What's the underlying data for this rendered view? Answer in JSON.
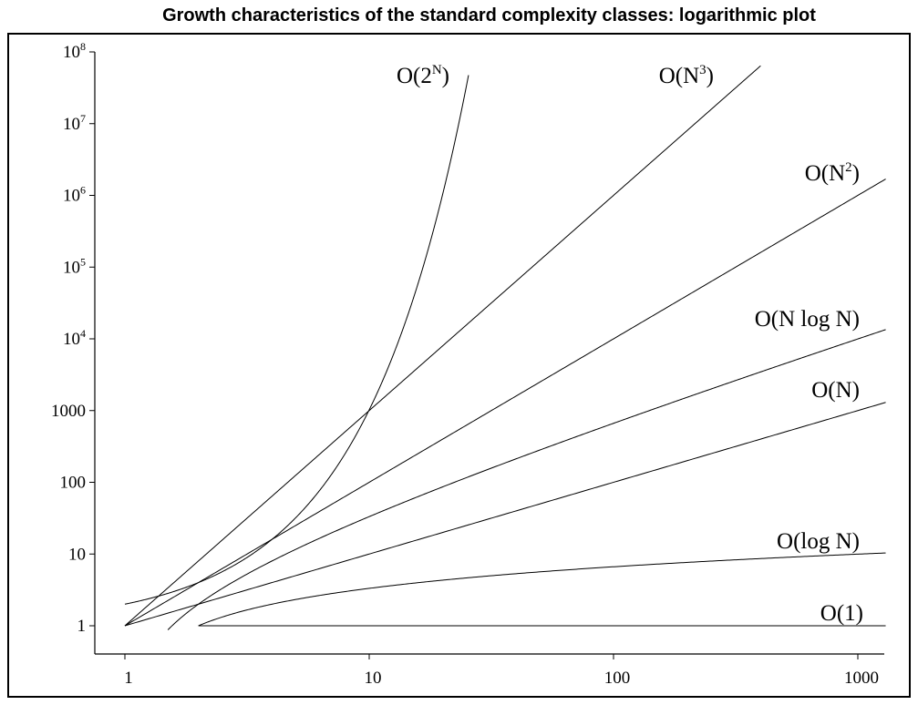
{
  "chart_data": {
    "type": "line",
    "title": "Growth characteristics of the standard complexity classes: logarithmic plot",
    "xscale": "log",
    "yscale": "log",
    "xlim": [
      1,
      1300
    ],
    "ylim": [
      1,
      100000000
    ],
    "x_ticks": [
      {
        "value": 1,
        "label": "1"
      },
      {
        "value": 10,
        "label": "10"
      },
      {
        "value": 100,
        "label": "100"
      },
      {
        "value": 1000,
        "label": "1000"
      }
    ],
    "y_ticks": [
      {
        "value": 1,
        "label": "1",
        "exp": ""
      },
      {
        "value": 10,
        "label": "10",
        "exp": ""
      },
      {
        "value": 100,
        "label": "100",
        "exp": ""
      },
      {
        "value": 1000,
        "label": "1000",
        "exp": ""
      },
      {
        "value": 10000,
        "label": "10",
        "exp": "4"
      },
      {
        "value": 100000,
        "label": "10",
        "exp": "5"
      },
      {
        "value": 1000000,
        "label": "10",
        "exp": "6"
      },
      {
        "value": 10000000,
        "label": "10",
        "exp": "7"
      },
      {
        "value": 100000000,
        "label": "10",
        "exp": "8"
      }
    ],
    "series": [
      {
        "id": "o1",
        "func": "one",
        "x_range": [
          2,
          1300
        ],
        "label": {
          "pre": "O(1)",
          "sup": "",
          "post": ""
        }
      },
      {
        "id": "ologn",
        "func": "log2",
        "x_range": [
          2,
          1300
        ],
        "label": {
          "pre": "O(log N)",
          "sup": "",
          "post": ""
        }
      },
      {
        "id": "on",
        "func": "n",
        "x_range": [
          1,
          1300
        ],
        "label": {
          "pre": "O(N)",
          "sup": "",
          "post": ""
        }
      },
      {
        "id": "onlogn",
        "func": "nlog2",
        "x_range": [
          1.5,
          1300
        ],
        "label": {
          "pre": "O(N log N)",
          "sup": "",
          "post": ""
        }
      },
      {
        "id": "on2",
        "func": "n2",
        "x_range": [
          1,
          1300
        ],
        "label": {
          "pre": "O(N",
          "sup": "2",
          "post": ")"
        }
      },
      {
        "id": "on3",
        "func": "n3",
        "x_range": [
          1,
          400
        ],
        "label": {
          "pre": "O(N",
          "sup": "3",
          "post": ")"
        }
      },
      {
        "id": "o2n",
        "func": "exp2",
        "x_range": [
          1,
          25.5
        ],
        "label": {
          "pre": "O(2",
          "sup": "N",
          "post": ")"
        }
      }
    ],
    "grid": false,
    "legend": "none"
  }
}
